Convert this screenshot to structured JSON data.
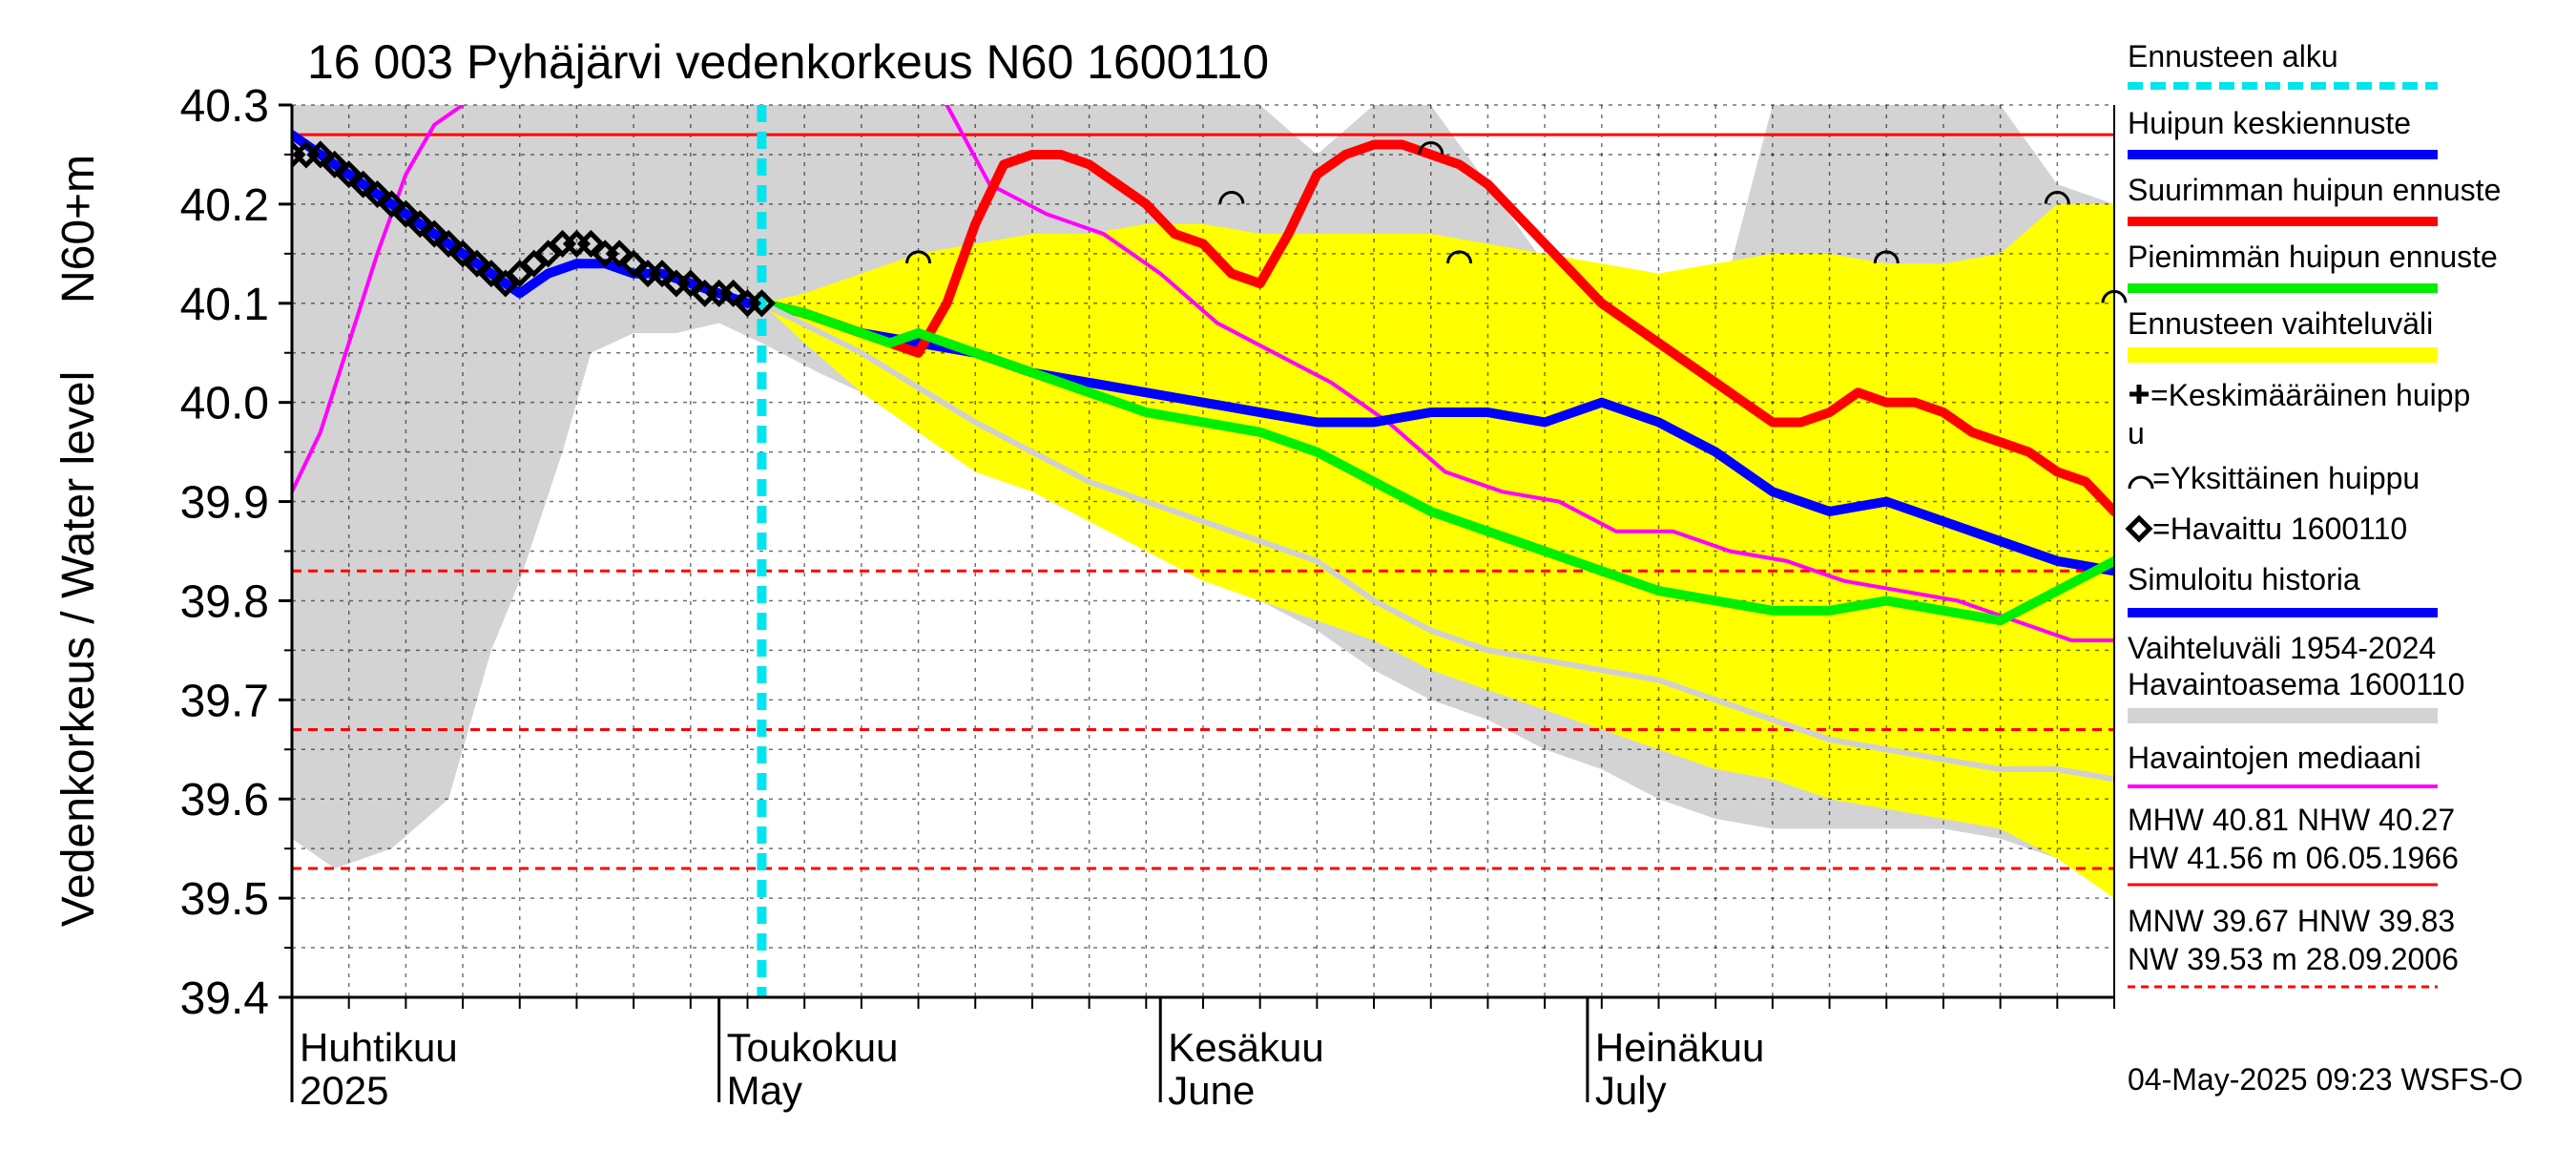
{
  "chart_data": {
    "type": "line",
    "title": "16 003 Pyhäjärvi vedenkorkeus N60 1600110",
    "ylabel_outer": "Vedenkorkeus / Water level",
    "ylabel_inner": "N60+m",
    "ylim": [
      39.4,
      40.3
    ],
    "yticks": [
      "39.4",
      "39.5",
      "39.6",
      "39.7",
      "39.8",
      "39.9",
      "40.0",
      "40.1",
      "40.2",
      "40.3"
    ],
    "x_range_days": [
      0,
      128
    ],
    "month_labels": [
      {
        "fi": "Huhtikuu",
        "en": "2025",
        "day": 0
      },
      {
        "fi": "Toukokuu",
        "en": "May",
        "day": 30
      },
      {
        "fi": "Kesäkuu",
        "en": "June",
        "day": 61
      },
      {
        "fi": "Heinäkuu",
        "en": "July",
        "day": 91
      }
    ],
    "forecast_start_day": 33,
    "reference_lines": [
      {
        "name": "NHW",
        "value": 40.27,
        "style": "solid",
        "color": "#ff0000"
      },
      {
        "name": "HNW",
        "value": 39.83,
        "style": "dashed",
        "color": "#ff0000"
      },
      {
        "name": "MNW",
        "value": 39.67,
        "style": "dashed",
        "color": "#ff0000"
      },
      {
        "name": "NW",
        "value": 39.53,
        "style": "dashed",
        "color": "#ff0000"
      }
    ],
    "historical_range": {
      "x": [
        0,
        3,
        7,
        11,
        14,
        16,
        19,
        21,
        24,
        27,
        30,
        33,
        37,
        40,
        43,
        46,
        49,
        53,
        56,
        60,
        64,
        68,
        72,
        76,
        80,
        84,
        88,
        92,
        96,
        100,
        104,
        108,
        112,
        116,
        120,
        124,
        128
      ],
      "upper": [
        40.3,
        40.3,
        40.3,
        40.3,
        40.3,
        40.3,
        40.3,
        40.3,
        40.3,
        40.3,
        40.3,
        40.3,
        40.3,
        40.3,
        40.3,
        40.3,
        40.3,
        40.3,
        40.3,
        40.3,
        40.3,
        40.3,
        40.25,
        40.3,
        40.3,
        40.22,
        40.14,
        40.12,
        40.1,
        40.08,
        40.3,
        40.3,
        40.3,
        40.3,
        40.3,
        40.22,
        40.2
      ],
      "lower": [
        39.56,
        39.53,
        39.55,
        39.6,
        39.75,
        39.82,
        39.95,
        40.05,
        40.07,
        40.07,
        40.08,
        40.06,
        40.03,
        40.01,
        40.0,
        39.98,
        39.95,
        39.92,
        39.9,
        39.86,
        39.83,
        39.8,
        39.77,
        39.73,
        39.7,
        39.68,
        39.65,
        39.63,
        39.6,
        39.58,
        39.57,
        39.57,
        39.57,
        39.57,
        39.56,
        39.54,
        39.53
      ]
    },
    "forecast_range": {
      "x": [
        33,
        36,
        40,
        44,
        48,
        52,
        56,
        60,
        64,
        68,
        72,
        76,
        80,
        84,
        88,
        92,
        96,
        100,
        104,
        108,
        112,
        116,
        120,
        124,
        128
      ],
      "upper": [
        40.1,
        40.11,
        40.13,
        40.15,
        40.16,
        40.17,
        40.17,
        40.18,
        40.18,
        40.17,
        40.17,
        40.17,
        40.17,
        40.16,
        40.15,
        40.14,
        40.13,
        40.14,
        40.15,
        40.15,
        40.14,
        40.14,
        40.15,
        40.2,
        40.2
      ],
      "lower": [
        40.1,
        40.06,
        40.01,
        39.97,
        39.93,
        39.91,
        39.88,
        39.85,
        39.82,
        39.8,
        39.78,
        39.76,
        39.73,
        39.71,
        39.69,
        39.67,
        39.65,
        39.63,
        39.62,
        39.6,
        39.59,
        39.58,
        39.57,
        39.54,
        39.5
      ]
    },
    "series": [
      {
        "name": "Havaintojen mediaani",
        "color": "#ff00ff",
        "x": [
          0,
          2,
          4,
          6,
          8,
          10,
          12
        ],
        "values": [
          39.91,
          39.97,
          40.06,
          40.15,
          40.23,
          40.28,
          40.3
        ]
      },
      {
        "name": "Havaintojen mediaani (continued)",
        "color": "#ff00ff",
        "x": [
          46,
          49,
          53,
          57,
          61,
          65,
          69,
          73,
          77,
          81,
          85,
          89,
          93,
          97,
          101,
          105,
          109,
          113,
          117,
          121,
          125,
          128
        ],
        "values": [
          40.3,
          40.22,
          40.19,
          40.17,
          40.13,
          40.08,
          40.05,
          40.02,
          39.98,
          39.93,
          39.91,
          39.9,
          39.87,
          39.87,
          39.85,
          39.84,
          39.82,
          39.81,
          39.8,
          39.78,
          39.76,
          39.76
        ]
      },
      {
        "name": "Simuloitu historia",
        "color": "#0000ff",
        "x": [
          0,
          2,
          4,
          6,
          8,
          10,
          12,
          14,
          16,
          18,
          20,
          22,
          24,
          26,
          28,
          30,
          32,
          33
        ],
        "values": [
          40.27,
          40.25,
          40.23,
          40.21,
          40.19,
          40.17,
          40.15,
          40.13,
          40.11,
          40.13,
          40.14,
          40.14,
          40.13,
          40.13,
          40.12,
          40.11,
          40.1,
          40.1
        ]
      },
      {
        "name": "Huipun keskiennuste",
        "color": "#0000ff",
        "x": [
          33,
          36,
          40,
          44,
          48,
          52,
          56,
          60,
          64,
          68,
          72,
          76,
          80,
          84,
          88,
          92,
          96,
          100,
          104,
          108,
          112,
          116,
          120,
          124,
          128
        ],
        "values": [
          40.1,
          40.09,
          40.07,
          40.06,
          40.05,
          40.03,
          40.02,
          40.01,
          40.0,
          39.99,
          39.98,
          39.98,
          39.99,
          39.99,
          39.98,
          40.0,
          39.98,
          39.95,
          39.91,
          39.89,
          39.9,
          39.88,
          39.86,
          39.84,
          39.83
        ]
      },
      {
        "name": "Suurimman huipun ennuste",
        "color": "#ff0000",
        "x": [
          33,
          36,
          40,
          42,
          44,
          46,
          48,
          50,
          52,
          54,
          56,
          58,
          60,
          62,
          64,
          66,
          68,
          70,
          72,
          74,
          76,
          78,
          80,
          82,
          84,
          86,
          88,
          90,
          92,
          94,
          96,
          98,
          100,
          102,
          104,
          106,
          108,
          110,
          112,
          114,
          116,
          118,
          120,
          122,
          124,
          126,
          128
        ],
        "values": [
          40.1,
          40.09,
          40.07,
          40.06,
          40.05,
          40.1,
          40.18,
          40.24,
          40.25,
          40.25,
          40.24,
          40.22,
          40.2,
          40.17,
          40.16,
          40.13,
          40.12,
          40.17,
          40.23,
          40.25,
          40.26,
          40.26,
          40.25,
          40.24,
          40.22,
          40.19,
          40.16,
          40.13,
          40.1,
          40.08,
          40.06,
          40.04,
          40.02,
          40.0,
          39.98,
          39.98,
          39.99,
          40.01,
          40.0,
          40.0,
          39.99,
          39.97,
          39.96,
          39.95,
          39.93,
          39.92,
          39.89
        ]
      },
      {
        "name": "Pienimmän huipun ennuste",
        "color": "#00ee00",
        "x": [
          33,
          36,
          40,
          42,
          44,
          48,
          52,
          56,
          60,
          64,
          68,
          72,
          76,
          80,
          84,
          88,
          92,
          96,
          100,
          104,
          108,
          112,
          116,
          120,
          124,
          128
        ],
        "values": [
          40.1,
          40.09,
          40.07,
          40.06,
          40.07,
          40.05,
          40.03,
          40.01,
          39.99,
          39.98,
          39.97,
          39.95,
          39.92,
          39.89,
          39.87,
          39.85,
          39.83,
          39.81,
          39.8,
          39.79,
          39.79,
          39.8,
          39.79,
          39.78,
          39.81,
          39.84
        ]
      },
      {
        "name": "Havaintojen mediaani (grey)",
        "color": "#d0d0d0",
        "x": [
          33,
          40,
          48,
          56,
          64,
          72,
          76,
          80,
          84,
          88,
          92,
          96,
          100,
          104,
          108,
          112,
          116,
          120,
          124,
          128
        ],
        "values": [
          40.1,
          40.05,
          39.98,
          39.92,
          39.88,
          39.84,
          39.8,
          39.77,
          39.75,
          39.74,
          39.73,
          39.72,
          39.7,
          39.68,
          39.66,
          39.65,
          39.64,
          39.63,
          39.63,
          39.62
        ]
      }
    ],
    "observed": {
      "name": "Havaittu 1600110",
      "x": [
        0,
        1,
        2,
        3,
        4,
        5,
        6,
        7,
        8,
        9,
        10,
        11,
        12,
        13,
        14,
        15,
        16,
        17,
        18,
        19,
        20,
        21,
        22,
        23,
        24,
        25,
        26,
        27,
        28,
        29,
        30,
        31,
        32,
        33
      ],
      "values": [
        40.25,
        40.25,
        40.25,
        40.24,
        40.23,
        40.22,
        40.21,
        40.2,
        40.19,
        40.18,
        40.17,
        40.16,
        40.15,
        40.14,
        40.13,
        40.12,
        40.13,
        40.14,
        40.15,
        40.16,
        40.16,
        40.16,
        40.15,
        40.15,
        40.14,
        40.13,
        40.13,
        40.12,
        40.12,
        40.11,
        40.11,
        40.11,
        40.1,
        40.1
      ]
    },
    "single_peaks": [
      {
        "x": 44,
        "value": 40.15
      },
      {
        "x": 66,
        "value": 40.21
      },
      {
        "x": 80,
        "value": 40.26
      },
      {
        "x": 82,
        "value": 40.15
      },
      {
        "x": 112,
        "value": 40.15
      },
      {
        "x": 124,
        "value": 40.21
      },
      {
        "x": 128,
        "value": 40.11
      }
    ],
    "legend": [
      {
        "label": "Ennusteen alku",
        "color": "#00e5ee",
        "kind": "dashed"
      },
      {
        "label": "Huipun keskiennuste",
        "color": "#0000ff",
        "kind": "thick"
      },
      {
        "label": "Suurimman huipun ennuste",
        "color": "#ff0000",
        "kind": "thick"
      },
      {
        "label": "Pienimmän huipun ennuste",
        "color": "#00ee00",
        "kind": "thick"
      },
      {
        "label": "Ennusteen vaihteluväli",
        "color": "#ffff00",
        "kind": "band"
      },
      {
        "label": "=Keskimääräinen huipp",
        "label2": "u",
        "kind": "plus"
      },
      {
        "label": "=Yksittäinen huippu",
        "kind": "arc"
      },
      {
        "label": "=Havaittu 1600110",
        "kind": "diamond"
      },
      {
        "label": "Simuloitu historia",
        "color": "#0000ff",
        "kind": "thick"
      },
      {
        "label": "Vaihteluväli 1954-2024",
        "label2": " Havaintoasema 1600110",
        "color": "#d3d3d3",
        "kind": "band"
      },
      {
        "label": "Havaintojen mediaani",
        "color": "#ff00ff",
        "kind": "thin"
      }
    ],
    "stats": {
      "line1": "MHW  40.81 NHW  40.27",
      "line2": "HW  41.56 m 06.05.1966",
      "line3": "MNW  39.67 HNW  39.83",
      "line4": "NW  39.53 m 28.09.2006"
    },
    "footer": "04-May-2025 09:23 WSFS-O"
  }
}
